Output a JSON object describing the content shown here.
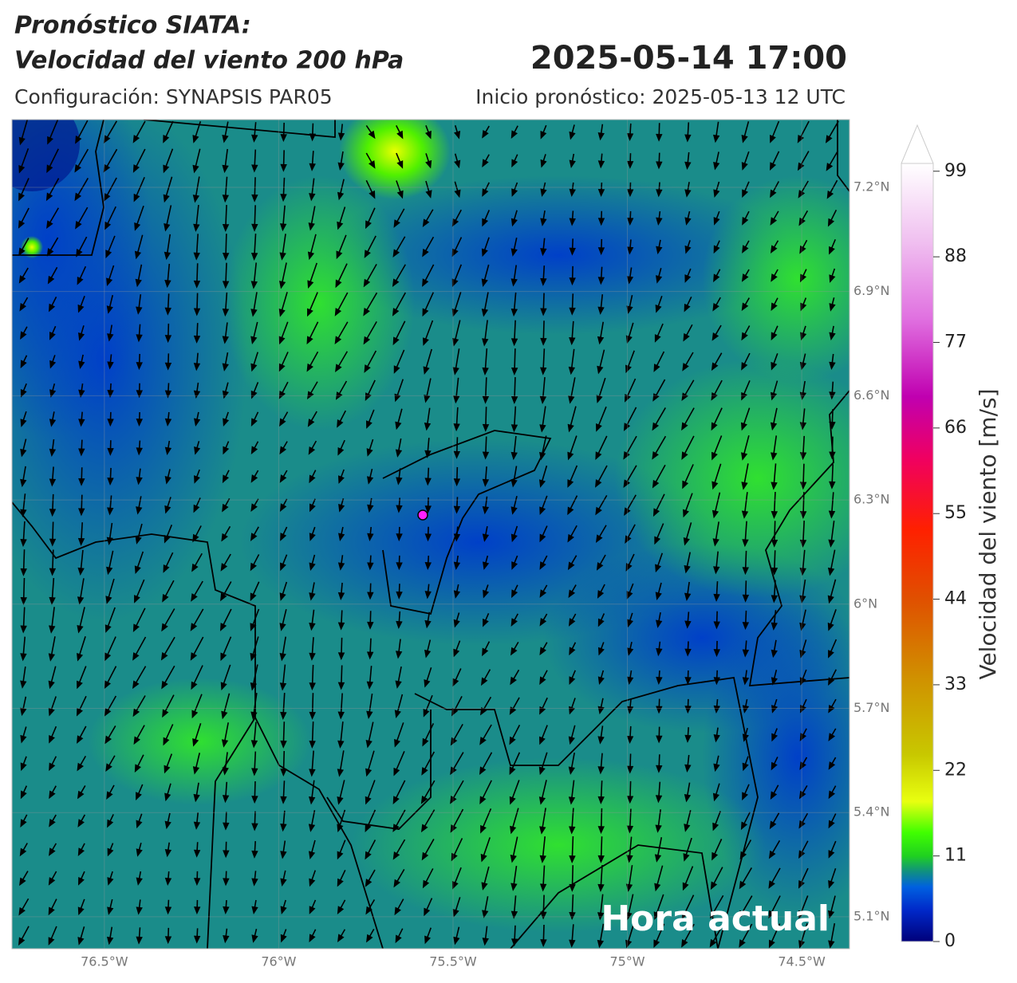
{
  "header": {
    "title_line1": "Pronóstico SIATA:",
    "title_line2": "Velocidad del viento 200 hPa",
    "valid_time": "2025-05-14 17:00",
    "config": "Configuración: SYNAPSIS PAR05",
    "init": "Inicio pronóstico: 2025-05-13 12 UTC"
  },
  "map": {
    "xlim": [
      -76.765,
      -74.363
    ],
    "ylim": [
      5.008,
      7.395
    ],
    "xticks": [
      {
        "value": -76.5,
        "label": "76.5°W"
      },
      {
        "value": -76,
        "label": "76°W"
      },
      {
        "value": -75.5,
        "label": "75.5°W"
      },
      {
        "value": -75,
        "label": "75°W"
      },
      {
        "value": -74.5,
        "label": "74.5°W"
      }
    ],
    "yticks": [
      {
        "value": 7.2,
        "label": "7.2°N"
      },
      {
        "value": 6.9,
        "label": "6.9°N"
      },
      {
        "value": 6.6,
        "label": "6.6°N"
      },
      {
        "value": 6.3,
        "label": "6.3°N"
      },
      {
        "value": 6,
        "label": "6°N"
      },
      {
        "value": 5.7,
        "label": "5.7°N"
      },
      {
        "value": 5.4,
        "label": "5.4°N"
      },
      {
        "value": 5.1,
        "label": "5.1°N"
      }
    ],
    "overlay": "Hora actual"
  },
  "colorbar": {
    "label": "Velocidad del viento [m/s]",
    "lim": [
      0,
      100
    ],
    "ticks": [
      0,
      11,
      22,
      33,
      44,
      55,
      66,
      77,
      88,
      99
    ]
  }
}
